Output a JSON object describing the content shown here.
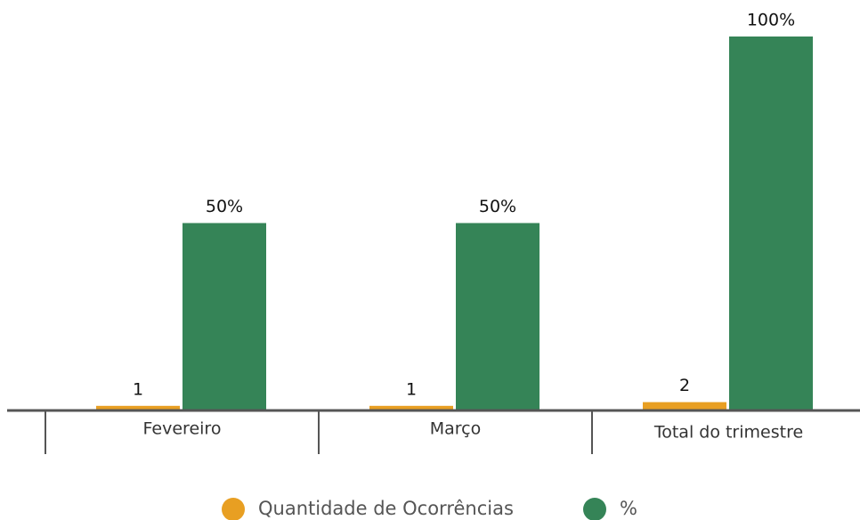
{
  "chart_data": {
    "type": "bar",
    "categories": [
      "Fevereiro",
      "Março",
      "Total do trimestre"
    ],
    "series": [
      {
        "name": "Quantidade de Ocorrências",
        "color": "#e89f22",
        "values": [
          1,
          1,
          2
        ],
        "value_labels": [
          "1",
          "1",
          "2"
        ]
      },
      {
        "name": "%",
        "color": "#358457",
        "values": [
          50,
          50,
          100
        ],
        "value_labels": [
          "50%",
          "50%",
          "100%"
        ]
      }
    ]
  }
}
